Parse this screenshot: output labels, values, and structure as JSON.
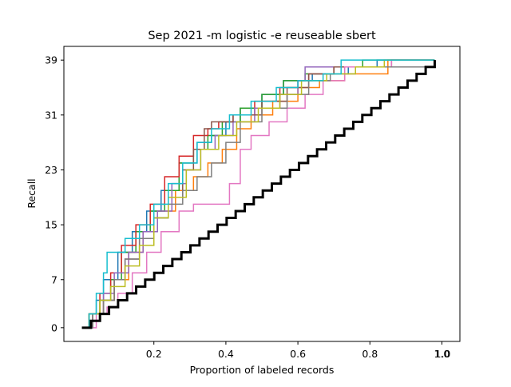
{
  "chart_data": {
    "type": "line",
    "title": "Sep 2021 -m logistic -e reuseable sbert",
    "xlabel": "Proportion of labeled records",
    "ylabel": "Recall",
    "xlim": [
      -0.05,
      1.05
    ],
    "ylim": [
      -2,
      41
    ],
    "x_ticks": [
      0.2,
      0.4,
      0.6,
      0.8,
      1.0
    ],
    "x_tick_labels": [
      "0.2",
      "0.4",
      "0.6",
      "0.8",
      "1.0"
    ],
    "x_tick_labels_overlay": [
      "1.0"
    ],
    "y_ticks": [
      0,
      7,
      15,
      23,
      31,
      39
    ],
    "y_tick_labels": [
      "0",
      "7",
      "15",
      "23",
      "31",
      "39"
    ],
    "grid": false,
    "legend": "none",
    "series": [
      {
        "color": "#1f77b4",
        "points": [
          [
            0.01,
            0
          ],
          [
            0.02,
            2
          ],
          [
            0.04,
            4
          ],
          [
            0.06,
            7
          ],
          [
            0.1,
            11
          ],
          [
            0.14,
            14
          ],
          [
            0.18,
            17
          ],
          [
            0.22,
            20
          ],
          [
            0.27,
            24
          ],
          [
            0.32,
            27
          ],
          [
            0.36,
            28
          ],
          [
            0.4,
            30
          ],
          [
            0.44,
            32
          ],
          [
            0.5,
            34
          ],
          [
            0.56,
            36
          ],
          [
            0.64,
            37
          ],
          [
            0.74,
            38
          ],
          [
            0.82,
            39
          ],
          [
            0.98,
            39
          ]
        ]
      },
      {
        "color": "#ff7f0e",
        "points": [
          [
            0.01,
            0
          ],
          [
            0.03,
            2
          ],
          [
            0.06,
            4
          ],
          [
            0.09,
            7
          ],
          [
            0.13,
            11
          ],
          [
            0.17,
            14
          ],
          [
            0.21,
            17
          ],
          [
            0.26,
            20
          ],
          [
            0.31,
            22
          ],
          [
            0.35,
            24
          ],
          [
            0.39,
            26
          ],
          [
            0.43,
            29
          ],
          [
            0.47,
            31
          ],
          [
            0.53,
            33
          ],
          [
            0.6,
            35
          ],
          [
            0.66,
            36
          ],
          [
            0.73,
            37
          ],
          [
            0.85,
            39
          ],
          [
            0.98,
            39
          ]
        ]
      },
      {
        "color": "#2ca02c",
        "points": [
          [
            0.01,
            0
          ],
          [
            0.02,
            2
          ],
          [
            0.05,
            4
          ],
          [
            0.08,
            7
          ],
          [
            0.11,
            11
          ],
          [
            0.15,
            14
          ],
          [
            0.19,
            17
          ],
          [
            0.23,
            20
          ],
          [
            0.27,
            24
          ],
          [
            0.31,
            26
          ],
          [
            0.35,
            28
          ],
          [
            0.39,
            30
          ],
          [
            0.44,
            32
          ],
          [
            0.5,
            34
          ],
          [
            0.56,
            36
          ],
          [
            0.62,
            37
          ],
          [
            0.7,
            38
          ],
          [
            0.78,
            39
          ],
          [
            0.98,
            39
          ]
        ]
      },
      {
        "color": "#d62728",
        "points": [
          [
            0.01,
            0
          ],
          [
            0.02,
            2
          ],
          [
            0.05,
            5
          ],
          [
            0.08,
            8
          ],
          [
            0.11,
            12
          ],
          [
            0.15,
            15
          ],
          [
            0.19,
            18
          ],
          [
            0.23,
            22
          ],
          [
            0.27,
            25
          ],
          [
            0.31,
            28
          ],
          [
            0.35,
            29
          ],
          [
            0.38,
            30
          ],
          [
            0.42,
            31
          ],
          [
            0.48,
            33
          ],
          [
            0.55,
            35
          ],
          [
            0.6,
            36
          ],
          [
            0.63,
            37
          ],
          [
            0.7,
            38
          ],
          [
            0.86,
            38
          ],
          [
            0.98,
            39
          ]
        ]
      },
      {
        "color": "#9467bd",
        "points": [
          [
            0.01,
            0
          ],
          [
            0.03,
            2
          ],
          [
            0.06,
            5
          ],
          [
            0.09,
            8
          ],
          [
            0.13,
            11
          ],
          [
            0.17,
            14
          ],
          [
            0.21,
            17
          ],
          [
            0.25,
            21
          ],
          [
            0.29,
            23
          ],
          [
            0.33,
            26
          ],
          [
            0.37,
            28
          ],
          [
            0.42,
            30
          ],
          [
            0.48,
            32
          ],
          [
            0.55,
            34
          ],
          [
            0.6,
            36
          ],
          [
            0.62,
            38
          ],
          [
            0.8,
            38
          ],
          [
            0.98,
            39
          ]
        ]
      },
      {
        "color": "#8c564b",
        "points": [
          [
            0.01,
            0
          ],
          [
            0.03,
            2
          ],
          [
            0.06,
            4
          ],
          [
            0.09,
            7
          ],
          [
            0.12,
            10
          ],
          [
            0.16,
            13
          ],
          [
            0.2,
            16
          ],
          [
            0.24,
            19
          ],
          [
            0.28,
            23
          ],
          [
            0.31,
            26
          ],
          [
            0.34,
            29
          ],
          [
            0.36,
            30
          ],
          [
            0.42,
            31
          ],
          [
            0.5,
            33
          ],
          [
            0.57,
            35
          ],
          [
            0.63,
            37
          ],
          [
            0.7,
            38
          ],
          [
            0.86,
            39
          ],
          [
            0.98,
            39
          ]
        ]
      },
      {
        "color": "#e377c2",
        "points": [
          [
            0.01,
            0
          ],
          [
            0.04,
            2
          ],
          [
            0.07,
            3
          ],
          [
            0.1,
            5
          ],
          [
            0.14,
            8
          ],
          [
            0.18,
            11
          ],
          [
            0.22,
            14
          ],
          [
            0.27,
            17
          ],
          [
            0.31,
            18
          ],
          [
            0.37,
            18
          ],
          [
            0.41,
            21
          ],
          [
            0.44,
            26
          ],
          [
            0.47,
            28
          ],
          [
            0.52,
            30
          ],
          [
            0.57,
            32
          ],
          [
            0.62,
            34
          ],
          [
            0.67,
            36
          ],
          [
            0.73,
            38
          ],
          [
            0.86,
            39
          ],
          [
            0.98,
            39
          ]
        ]
      },
      {
        "color": "#7f7f7f",
        "points": [
          [
            0.01,
            0
          ],
          [
            0.03,
            2
          ],
          [
            0.06,
            4
          ],
          [
            0.09,
            7
          ],
          [
            0.12,
            10
          ],
          [
            0.16,
            13
          ],
          [
            0.2,
            16
          ],
          [
            0.24,
            18
          ],
          [
            0.28,
            20
          ],
          [
            0.32,
            22
          ],
          [
            0.36,
            24
          ],
          [
            0.4,
            27
          ],
          [
            0.44,
            30
          ],
          [
            0.5,
            32
          ],
          [
            0.57,
            34
          ],
          [
            0.63,
            36
          ],
          [
            0.69,
            37
          ],
          [
            0.76,
            38
          ],
          [
            0.98,
            39
          ]
        ]
      },
      {
        "color": "#bcbd22",
        "points": [
          [
            0.01,
            0
          ],
          [
            0.02,
            2
          ],
          [
            0.05,
            4
          ],
          [
            0.08,
            6
          ],
          [
            0.12,
            9
          ],
          [
            0.16,
            12
          ],
          [
            0.2,
            16
          ],
          [
            0.24,
            19
          ],
          [
            0.29,
            23
          ],
          [
            0.33,
            26
          ],
          [
            0.38,
            28
          ],
          [
            0.43,
            30
          ],
          [
            0.49,
            32
          ],
          [
            0.55,
            34
          ],
          [
            0.61,
            36
          ],
          [
            0.68,
            37
          ],
          [
            0.76,
            38
          ],
          [
            0.84,
            39
          ],
          [
            0.98,
            39
          ]
        ]
      },
      {
        "color": "#17becf",
        "points": [
          [
            0.01,
            0
          ],
          [
            0.02,
            2
          ],
          [
            0.04,
            5
          ],
          [
            0.06,
            8
          ],
          [
            0.07,
            11
          ],
          [
            0.12,
            13
          ],
          [
            0.16,
            15
          ],
          [
            0.2,
            18
          ],
          [
            0.24,
            21
          ],
          [
            0.28,
            24
          ],
          [
            0.32,
            27
          ],
          [
            0.36,
            29
          ],
          [
            0.41,
            31
          ],
          [
            0.47,
            33
          ],
          [
            0.54,
            35
          ],
          [
            0.6,
            36
          ],
          [
            0.67,
            37
          ],
          [
            0.72,
            39
          ],
          [
            0.98,
            39
          ]
        ]
      },
      {
        "color": "#000000",
        "width": 3,
        "points": [
          [
            0.0,
            0
          ],
          [
            0.98,
            39
          ]
        ]
      }
    ]
  }
}
